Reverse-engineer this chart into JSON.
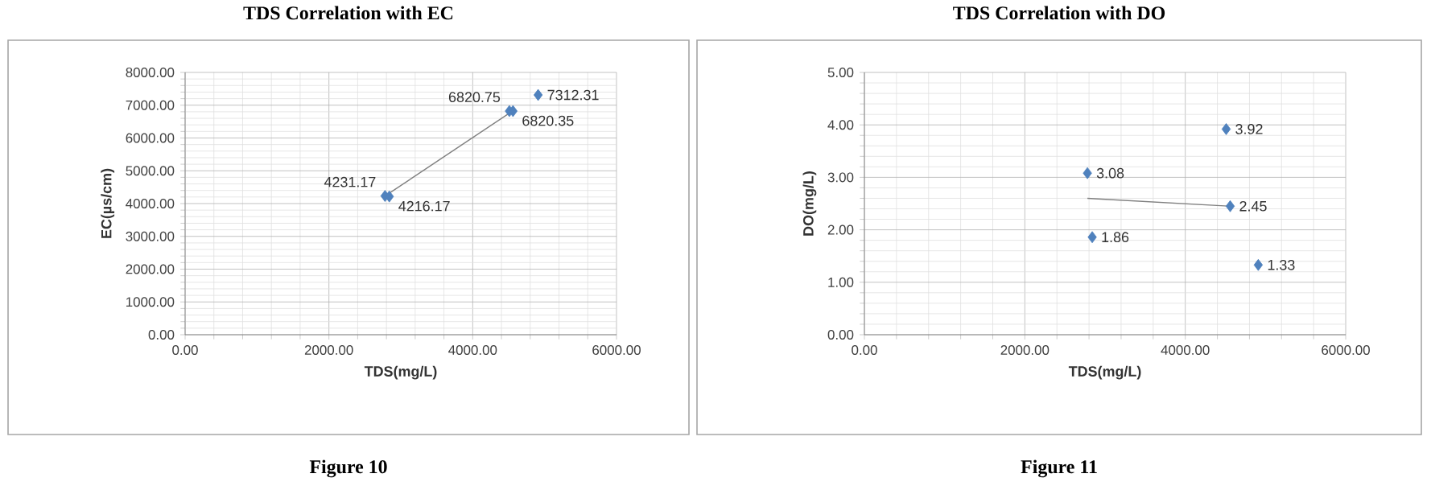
{
  "chart_data": [
    {
      "type": "scatter",
      "title": "TDS Correlation with EC",
      "xlabel": "TDS(mg/L)",
      "ylabel": "EC(µs/cm)",
      "xlim": [
        0,
        6000
      ],
      "ylim": [
        0,
        8000
      ],
      "xticks": [
        {
          "value": 0,
          "label": "0.00"
        },
        {
          "value": 2000,
          "label": "2000.00"
        },
        {
          "value": 4000,
          "label": "4000.00"
        },
        {
          "value": 6000,
          "label": "6000.00"
        }
      ],
      "yticks": [
        {
          "value": 0,
          "label": "0.00"
        },
        {
          "value": 1000,
          "label": "1000.00"
        },
        {
          "value": 2000,
          "label": "2000.00"
        },
        {
          "value": 3000,
          "label": "3000.00"
        },
        {
          "value": 4000,
          "label": "4000.00"
        },
        {
          "value": 5000,
          "label": "5000.00"
        },
        {
          "value": 6000,
          "label": "6000.00"
        },
        {
          "value": 7000,
          "label": "7000.00"
        },
        {
          "value": 8000,
          "label": "8000.00"
        }
      ],
      "grid": true,
      "annotations": [
        "Figure 10"
      ],
      "series": [
        {
          "color": "#4f81bd",
          "marker": "diamond",
          "data_labels": true,
          "x": [
            2780,
            2840,
            4510,
            4560,
            4910
          ],
          "values": [
            4231.17,
            4216.17,
            6820.75,
            6820.35,
            7312.31
          ]
        },
        {
          "type": "line",
          "color": "#808080",
          "marker": "none",
          "x": [
            2780,
            4560
          ],
          "values": [
            4230,
            6830
          ]
        }
      ]
    },
    {
      "type": "scatter",
      "title": "TDS Correlation with DO",
      "xlabel": "TDS(mg/L)",
      "ylabel": "DO(mg/L)",
      "xlim": [
        0,
        6000
      ],
      "ylim": [
        0,
        5
      ],
      "xticks": [
        {
          "value": 0,
          "label": "0.00"
        },
        {
          "value": 2000,
          "label": "2000.00"
        },
        {
          "value": 4000,
          "label": "4000.00"
        },
        {
          "value": 6000,
          "label": "6000.00"
        }
      ],
      "yticks": [
        {
          "value": 0,
          "label": "0.00"
        },
        {
          "value": 1,
          "label": "1.00"
        },
        {
          "value": 2,
          "label": "2.00"
        },
        {
          "value": 3,
          "label": "3.00"
        },
        {
          "value": 4,
          "label": "4.00"
        },
        {
          "value": 5,
          "label": "5.00"
        }
      ],
      "grid": true,
      "annotations": [
        "Figure 11"
      ],
      "series": [
        {
          "color": "#4f81bd",
          "marker": "diamond",
          "data_labels": true,
          "x": [
            2780,
            2840,
            4510,
            4560,
            4910
          ],
          "values": [
            3.08,
            1.86,
            3.92,
            2.45,
            1.33
          ]
        },
        {
          "type": "line",
          "color": "#808080",
          "marker": "none",
          "x": [
            2780,
            4560
          ],
          "values": [
            2.6,
            2.45
          ]
        }
      ]
    }
  ]
}
